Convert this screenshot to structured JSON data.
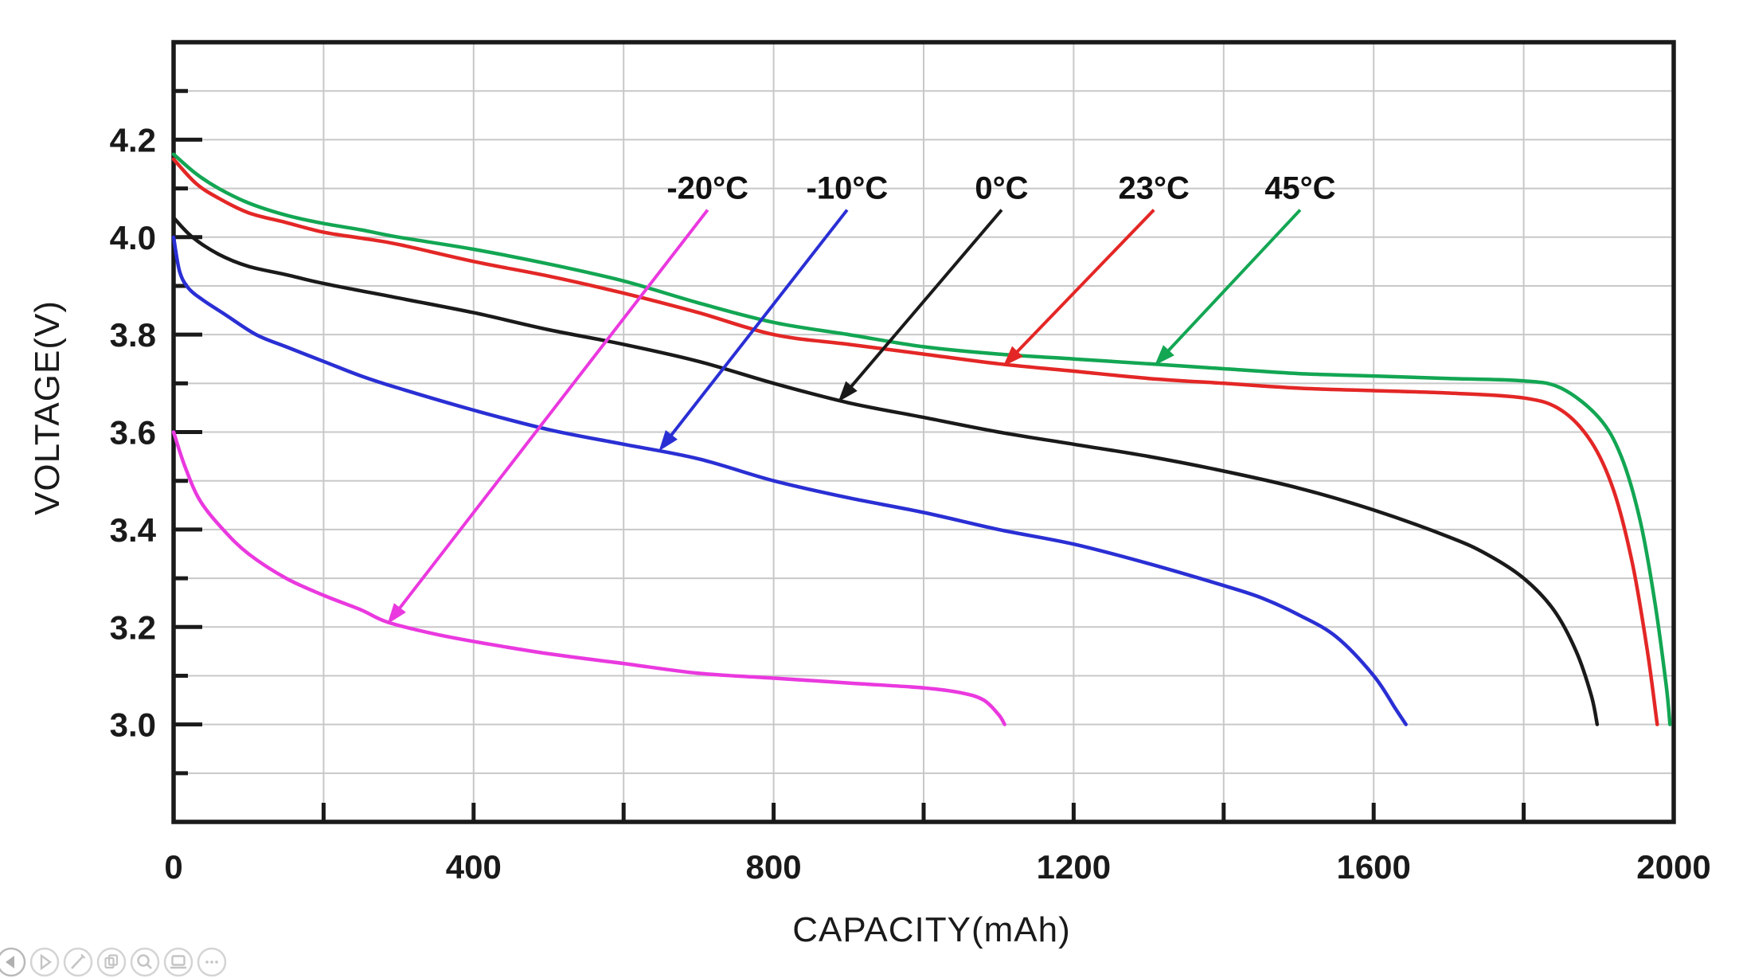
{
  "axes": {
    "x_title": "CAPACITY(mAh)",
    "y_title": "VOLTAGE(V)"
  },
  "chart_data": {
    "type": "line",
    "title": "",
    "xlabel": "CAPACITY(mAh)",
    "ylabel": "VOLTAGE(V)",
    "xlim": [
      0,
      2000
    ],
    "ylim": [
      2.8,
      4.4
    ],
    "grid": true,
    "legend_position": "inline-annotations-with-arrows",
    "x_ticks": {
      "labeled": [
        0,
        400,
        800,
        1200,
        1600,
        2000
      ],
      "grid_step": 200
    },
    "y_ticks": {
      "labeled": [
        3.0,
        3.2,
        3.4,
        3.6,
        3.8,
        4.0,
        4.2
      ],
      "minor_step": 0.1,
      "grid_min": 2.9,
      "grid_max": 4.3
    },
    "colors": {
      "grid": "#c8c8c8",
      "axis": "#1a1a1a",
      "text": "#1a1a1a"
    },
    "series": [
      {
        "label": "-20°C",
        "color": "#ea39df",
        "annotation": {
          "label_x": 712,
          "label_v": 4.1,
          "tip_x": 285,
          "tip_v": 3.206
        },
        "points": [
          [
            0,
            3.6
          ],
          [
            15,
            3.53
          ],
          [
            35,
            3.46
          ],
          [
            66,
            3.4
          ],
          [
            100,
            3.35
          ],
          [
            150,
            3.3
          ],
          [
            200,
            3.265
          ],
          [
            250,
            3.235
          ],
          [
            285,
            3.21
          ],
          [
            350,
            3.185
          ],
          [
            420,
            3.165
          ],
          [
            500,
            3.145
          ],
          [
            600,
            3.125
          ],
          [
            700,
            3.105
          ],
          [
            800,
            3.095
          ],
          [
            900,
            3.085
          ],
          [
            1000,
            3.075
          ],
          [
            1050,
            3.065
          ],
          [
            1080,
            3.05
          ],
          [
            1100,
            3.02
          ],
          [
            1108,
            3.0
          ]
        ]
      },
      {
        "label": "-10°C",
        "color": "#2a2fd4",
        "annotation": {
          "label_x": 898,
          "label_v": 4.1,
          "tip_x": 647,
          "tip_v": 3.561
        },
        "points": [
          [
            0,
            4.0
          ],
          [
            8,
            3.93
          ],
          [
            20,
            3.895
          ],
          [
            40,
            3.87
          ],
          [
            70,
            3.84
          ],
          [
            110,
            3.8
          ],
          [
            150,
            3.775
          ],
          [
            200,
            3.745
          ],
          [
            250,
            3.715
          ],
          [
            300,
            3.69
          ],
          [
            400,
            3.645
          ],
          [
            500,
            3.605
          ],
          [
            600,
            3.575
          ],
          [
            700,
            3.545
          ],
          [
            800,
            3.5
          ],
          [
            900,
            3.465
          ],
          [
            1000,
            3.435
          ],
          [
            1100,
            3.4
          ],
          [
            1200,
            3.37
          ],
          [
            1300,
            3.33
          ],
          [
            1400,
            3.285
          ],
          [
            1450,
            3.26
          ],
          [
            1500,
            3.225
          ],
          [
            1550,
            3.18
          ],
          [
            1600,
            3.1
          ],
          [
            1630,
            3.03
          ],
          [
            1643,
            3.0
          ]
        ]
      },
      {
        "label": "0°C",
        "color": "#1a1a1a",
        "annotation": {
          "label_x": 1104,
          "label_v": 4.1,
          "tip_x": 886,
          "tip_v": 3.662
        },
        "points": [
          [
            0,
            4.04
          ],
          [
            25,
            4.0
          ],
          [
            60,
            3.965
          ],
          [
            100,
            3.94
          ],
          [
            150,
            3.923
          ],
          [
            200,
            3.905
          ],
          [
            300,
            3.875
          ],
          [
            400,
            3.845
          ],
          [
            500,
            3.81
          ],
          [
            600,
            3.78
          ],
          [
            700,
            3.745
          ],
          [
            800,
            3.7
          ],
          [
            900,
            3.66
          ],
          [
            1000,
            3.63
          ],
          [
            1100,
            3.6
          ],
          [
            1200,
            3.575
          ],
          [
            1300,
            3.55
          ],
          [
            1400,
            3.52
          ],
          [
            1500,
            3.485
          ],
          [
            1600,
            3.44
          ],
          [
            1700,
            3.385
          ],
          [
            1750,
            3.35
          ],
          [
            1800,
            3.3
          ],
          [
            1840,
            3.235
          ],
          [
            1870,
            3.15
          ],
          [
            1890,
            3.06
          ],
          [
            1898,
            3.0
          ]
        ]
      },
      {
        "label": "23°C",
        "color": "#e32726",
        "annotation": {
          "label_x": 1307,
          "label_v": 4.1,
          "tip_x": 1106,
          "tip_v": 3.735
        },
        "points": [
          [
            0,
            4.16
          ],
          [
            30,
            4.11
          ],
          [
            60,
            4.08
          ],
          [
            100,
            4.05
          ],
          [
            150,
            4.03
          ],
          [
            200,
            4.01
          ],
          [
            250,
            3.998
          ],
          [
            300,
            3.985
          ],
          [
            400,
            3.95
          ],
          [
            500,
            3.92
          ],
          [
            600,
            3.885
          ],
          [
            700,
            3.845
          ],
          [
            800,
            3.8
          ],
          [
            900,
            3.78
          ],
          [
            1000,
            3.76
          ],
          [
            1100,
            3.74
          ],
          [
            1200,
            3.725
          ],
          [
            1300,
            3.71
          ],
          [
            1400,
            3.7
          ],
          [
            1500,
            3.69
          ],
          [
            1600,
            3.685
          ],
          [
            1700,
            3.68
          ],
          [
            1800,
            3.67
          ],
          [
            1850,
            3.645
          ],
          [
            1890,
            3.58
          ],
          [
            1920,
            3.48
          ],
          [
            1945,
            3.33
          ],
          [
            1965,
            3.15
          ],
          [
            1978,
            3.0
          ]
        ]
      },
      {
        "label": "45°C",
        "color": "#13a653",
        "annotation": {
          "label_x": 1502,
          "label_v": 4.1,
          "tip_x": 1308,
          "tip_v": 3.737
        },
        "points": [
          [
            0,
            4.17
          ],
          [
            30,
            4.13
          ],
          [
            60,
            4.1
          ],
          [
            100,
            4.07
          ],
          [
            150,
            4.045
          ],
          [
            200,
            4.028
          ],
          [
            250,
            4.015
          ],
          [
            300,
            4.0
          ],
          [
            400,
            3.975
          ],
          [
            500,
            3.945
          ],
          [
            600,
            3.91
          ],
          [
            700,
            3.865
          ],
          [
            800,
            3.825
          ],
          [
            900,
            3.8
          ],
          [
            1000,
            3.775
          ],
          [
            1100,
            3.76
          ],
          [
            1200,
            3.75
          ],
          [
            1300,
            3.74
          ],
          [
            1400,
            3.73
          ],
          [
            1500,
            3.72
          ],
          [
            1600,
            3.715
          ],
          [
            1700,
            3.71
          ],
          [
            1800,
            3.705
          ],
          [
            1850,
            3.69
          ],
          [
            1900,
            3.63
          ],
          [
            1930,
            3.55
          ],
          [
            1955,
            3.42
          ],
          [
            1975,
            3.25
          ],
          [
            1990,
            3.08
          ],
          [
            1995,
            3.0
          ]
        ]
      }
    ]
  },
  "toolbar": {
    "ring_color": "#d4d4d4",
    "icon_color": "#c4c4c4",
    "buttons": [
      {
        "icon": "back"
      },
      {
        "icon": "forward"
      },
      {
        "icon": "edit"
      },
      {
        "icon": "copy"
      },
      {
        "icon": "search"
      },
      {
        "icon": "screen"
      },
      {
        "icon": "more"
      }
    ]
  }
}
